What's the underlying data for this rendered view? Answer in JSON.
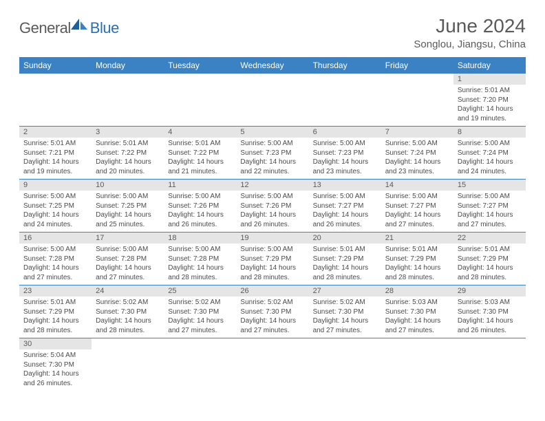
{
  "brand": {
    "part1": "General",
    "part2": "Blue"
  },
  "title": "June 2024",
  "location": "Songlou, Jiangsu, China",
  "colors": {
    "header_bg": "#3b82c4",
    "header_text": "#ffffff",
    "daynum_bg": "#e5e5e5",
    "border": "#3b82c4",
    "text": "#4a4a4a",
    "title_text": "#5a5a5a"
  },
  "weekdays": [
    "Sunday",
    "Monday",
    "Tuesday",
    "Wednesday",
    "Thursday",
    "Friday",
    "Saturday"
  ],
  "weeks": [
    [
      null,
      null,
      null,
      null,
      null,
      null,
      {
        "n": "1",
        "sr": "Sunrise: 5:01 AM",
        "ss": "Sunset: 7:20 PM",
        "dl": "Daylight: 14 hours and 19 minutes."
      }
    ],
    [
      {
        "n": "2",
        "sr": "Sunrise: 5:01 AM",
        "ss": "Sunset: 7:21 PM",
        "dl": "Daylight: 14 hours and 19 minutes."
      },
      {
        "n": "3",
        "sr": "Sunrise: 5:01 AM",
        "ss": "Sunset: 7:22 PM",
        "dl": "Daylight: 14 hours and 20 minutes."
      },
      {
        "n": "4",
        "sr": "Sunrise: 5:01 AM",
        "ss": "Sunset: 7:22 PM",
        "dl": "Daylight: 14 hours and 21 minutes."
      },
      {
        "n": "5",
        "sr": "Sunrise: 5:00 AM",
        "ss": "Sunset: 7:23 PM",
        "dl": "Daylight: 14 hours and 22 minutes."
      },
      {
        "n": "6",
        "sr": "Sunrise: 5:00 AM",
        "ss": "Sunset: 7:23 PM",
        "dl": "Daylight: 14 hours and 23 minutes."
      },
      {
        "n": "7",
        "sr": "Sunrise: 5:00 AM",
        "ss": "Sunset: 7:24 PM",
        "dl": "Daylight: 14 hours and 23 minutes."
      },
      {
        "n": "8",
        "sr": "Sunrise: 5:00 AM",
        "ss": "Sunset: 7:24 PM",
        "dl": "Daylight: 14 hours and 24 minutes."
      }
    ],
    [
      {
        "n": "9",
        "sr": "Sunrise: 5:00 AM",
        "ss": "Sunset: 7:25 PM",
        "dl": "Daylight: 14 hours and 24 minutes."
      },
      {
        "n": "10",
        "sr": "Sunrise: 5:00 AM",
        "ss": "Sunset: 7:25 PM",
        "dl": "Daylight: 14 hours and 25 minutes."
      },
      {
        "n": "11",
        "sr": "Sunrise: 5:00 AM",
        "ss": "Sunset: 7:26 PM",
        "dl": "Daylight: 14 hours and 26 minutes."
      },
      {
        "n": "12",
        "sr": "Sunrise: 5:00 AM",
        "ss": "Sunset: 7:26 PM",
        "dl": "Daylight: 14 hours and 26 minutes."
      },
      {
        "n": "13",
        "sr": "Sunrise: 5:00 AM",
        "ss": "Sunset: 7:27 PM",
        "dl": "Daylight: 14 hours and 26 minutes."
      },
      {
        "n": "14",
        "sr": "Sunrise: 5:00 AM",
        "ss": "Sunset: 7:27 PM",
        "dl": "Daylight: 14 hours and 27 minutes."
      },
      {
        "n": "15",
        "sr": "Sunrise: 5:00 AM",
        "ss": "Sunset: 7:27 PM",
        "dl": "Daylight: 14 hours and 27 minutes."
      }
    ],
    [
      {
        "n": "16",
        "sr": "Sunrise: 5:00 AM",
        "ss": "Sunset: 7:28 PM",
        "dl": "Daylight: 14 hours and 27 minutes."
      },
      {
        "n": "17",
        "sr": "Sunrise: 5:00 AM",
        "ss": "Sunset: 7:28 PM",
        "dl": "Daylight: 14 hours and 27 minutes."
      },
      {
        "n": "18",
        "sr": "Sunrise: 5:00 AM",
        "ss": "Sunset: 7:28 PM",
        "dl": "Daylight: 14 hours and 28 minutes."
      },
      {
        "n": "19",
        "sr": "Sunrise: 5:00 AM",
        "ss": "Sunset: 7:29 PM",
        "dl": "Daylight: 14 hours and 28 minutes."
      },
      {
        "n": "20",
        "sr": "Sunrise: 5:01 AM",
        "ss": "Sunset: 7:29 PM",
        "dl": "Daylight: 14 hours and 28 minutes."
      },
      {
        "n": "21",
        "sr": "Sunrise: 5:01 AM",
        "ss": "Sunset: 7:29 PM",
        "dl": "Daylight: 14 hours and 28 minutes."
      },
      {
        "n": "22",
        "sr": "Sunrise: 5:01 AM",
        "ss": "Sunset: 7:29 PM",
        "dl": "Daylight: 14 hours and 28 minutes."
      }
    ],
    [
      {
        "n": "23",
        "sr": "Sunrise: 5:01 AM",
        "ss": "Sunset: 7:29 PM",
        "dl": "Daylight: 14 hours and 28 minutes."
      },
      {
        "n": "24",
        "sr": "Sunrise: 5:02 AM",
        "ss": "Sunset: 7:30 PM",
        "dl": "Daylight: 14 hours and 28 minutes."
      },
      {
        "n": "25",
        "sr": "Sunrise: 5:02 AM",
        "ss": "Sunset: 7:30 PM",
        "dl": "Daylight: 14 hours and 27 minutes."
      },
      {
        "n": "26",
        "sr": "Sunrise: 5:02 AM",
        "ss": "Sunset: 7:30 PM",
        "dl": "Daylight: 14 hours and 27 minutes."
      },
      {
        "n": "27",
        "sr": "Sunrise: 5:02 AM",
        "ss": "Sunset: 7:30 PM",
        "dl": "Daylight: 14 hours and 27 minutes."
      },
      {
        "n": "28",
        "sr": "Sunrise: 5:03 AM",
        "ss": "Sunset: 7:30 PM",
        "dl": "Daylight: 14 hours and 27 minutes."
      },
      {
        "n": "29",
        "sr": "Sunrise: 5:03 AM",
        "ss": "Sunset: 7:30 PM",
        "dl": "Daylight: 14 hours and 26 minutes."
      }
    ],
    [
      {
        "n": "30",
        "sr": "Sunrise: 5:04 AM",
        "ss": "Sunset: 7:30 PM",
        "dl": "Daylight: 14 hours and 26 minutes."
      },
      null,
      null,
      null,
      null,
      null,
      null
    ]
  ]
}
